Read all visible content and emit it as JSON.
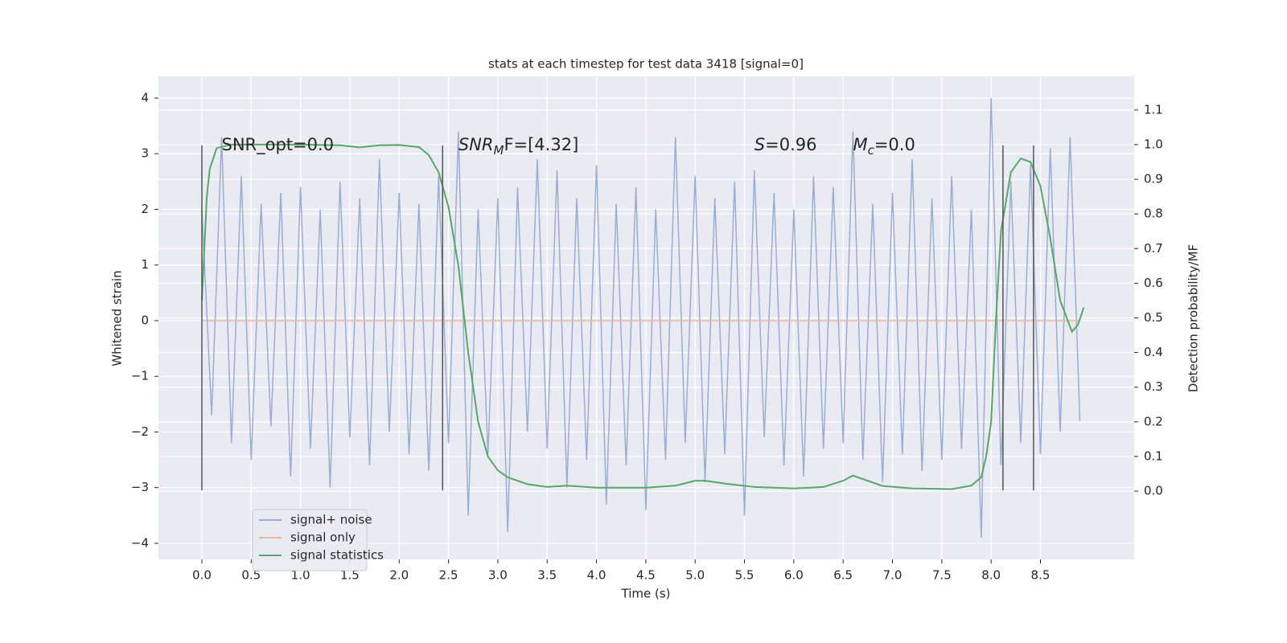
{
  "chart_data": {
    "type": "line",
    "title": "stats at each timestep for test data 3418 [signal=0]",
    "xlabel": "Time (s)",
    "ylabel": "Whitened strain",
    "y2label": "Detection probability/MF",
    "xlim": [
      -0.44,
      9.45
    ],
    "ylim": [
      -4.29,
      4.39
    ],
    "y2lim": [
      -0.197,
      1.197
    ],
    "xticks": [
      {
        "value": 0,
        "label": "0.0"
      },
      0.5,
      {
        "value": 1,
        "label": "1.0"
      },
      1.5,
      {
        "value": 2,
        "label": "2.0"
      },
      2.5,
      {
        "value": 3,
        "label": "3.0"
      },
      3.5,
      {
        "value": 4,
        "label": "4.0"
      },
      4.5,
      {
        "value": 5,
        "label": "5.0"
      },
      5.5,
      {
        "value": 6,
        "label": "6.0"
      },
      6.5,
      {
        "value": 7,
        "label": "7.0"
      },
      7.5,
      {
        "value": 8,
        "label": "8.0"
      },
      8.5
    ],
    "yticks": [
      {
        "value": -4,
        "label": "−4"
      },
      {
        "value": -3,
        "label": "−3"
      },
      {
        "value": -2,
        "label": "−2"
      },
      {
        "value": -1,
        "label": "−1"
      },
      0,
      1,
      2,
      3,
      4
    ],
    "y2ticks": [
      {
        "value": 0,
        "label": "0.0"
      },
      0.1,
      0.2,
      0.3,
      0.4,
      0.5,
      0.6,
      0.7,
      0.8,
      0.9,
      {
        "value": 1,
        "label": "1.0"
      },
      1.1
    ],
    "grid": true,
    "legend": "lower left",
    "background": "#eaeaf2",
    "vlines": [
      0.0,
      2.44,
      8.12,
      8.43
    ],
    "vline_ymin": -3.05,
    "vline_ymax": 3.15,
    "vline_color": "#555555",
    "annotations": [
      {
        "base": "SNR_opt=0.0",
        "x": 0.2,
        "y": 3.15
      },
      {
        "base": "SNR",
        "sub": "M",
        "rest": "F=[4.32]",
        "x": 2.6,
        "y": 3.15
      },
      {
        "base": "S",
        "rest": "=0.96",
        "x": 5.6,
        "y": 3.15
      },
      {
        "base": "M",
        "sub": "c",
        "rest": "=0.0",
        "x": 6.6,
        "y": 3.15
      }
    ],
    "series": [
      {
        "name": "signal+ noise",
        "color": "#9aaed3",
        "x": [
          0.0,
          0.1,
          0.2,
          0.3,
          0.4,
          0.5,
          0.6,
          0.7,
          0.8,
          0.9,
          1.0,
          1.1,
          1.2,
          1.3,
          1.4,
          1.5,
          1.6,
          1.7,
          1.8,
          1.9,
          2.0,
          2.1,
          2.2,
          2.3,
          2.4,
          2.5,
          2.6,
          2.7,
          2.8,
          2.9,
          3.0,
          3.1,
          3.2,
          3.3,
          3.4,
          3.5,
          3.6,
          3.7,
          3.8,
          3.9,
          4.0,
          4.1,
          4.2,
          4.3,
          4.4,
          4.5,
          4.6,
          4.7,
          4.8,
          4.9,
          5.0,
          5.1,
          5.2,
          5.3,
          5.4,
          5.5,
          5.6,
          5.7,
          5.8,
          5.9,
          6.0,
          6.1,
          6.2,
          6.3,
          6.4,
          6.5,
          6.6,
          6.7,
          6.8,
          6.9,
          7.0,
          7.1,
          7.2,
          7.3,
          7.4,
          7.5,
          7.6,
          7.7,
          7.8,
          7.9,
          8.0,
          8.1,
          8.2,
          8.3,
          8.4,
          8.5,
          8.6,
          8.7,
          8.8,
          8.9
        ],
        "values": [
          2.0,
          -1.7,
          3.3,
          -2.2,
          2.6,
          -2.5,
          2.1,
          -1.9,
          2.3,
          -2.8,
          2.4,
          -2.3,
          2.0,
          -3.0,
          2.5,
          -2.1,
          2.2,
          -2.6,
          2.9,
          -2.0,
          2.3,
          -2.4,
          2.1,
          -2.7,
          2.6,
          -2.2,
          3.4,
          -3.5,
          2.0,
          -2.4,
          2.2,
          -3.8,
          2.4,
          -2.0,
          2.9,
          -2.3,
          2.7,
          -3.0,
          2.2,
          -2.5,
          2.8,
          -3.3,
          2.1,
          -2.6,
          2.4,
          -3.4,
          2.0,
          -2.5,
          3.3,
          -2.2,
          2.6,
          -2.9,
          2.2,
          -2.4,
          2.5,
          -3.5,
          2.7,
          -2.1,
          2.3,
          -2.6,
          2.0,
          -2.8,
          2.6,
          -2.3,
          2.4,
          -2.2,
          3.4,
          -2.5,
          2.1,
          -2.9,
          2.3,
          -2.4,
          2.9,
          -2.7,
          2.2,
          -2.5,
          2.6,
          -2.3,
          2.0,
          -3.9,
          4.0,
          -2.6,
          2.5,
          -2.2,
          2.8,
          -2.4,
          3.1,
          -2.0,
          3.3,
          -1.8
        ]
      },
      {
        "name": "signal only",
        "color": "#e8b8a0",
        "x": [
          0.0,
          8.9
        ],
        "values": [
          0,
          0
        ]
      },
      {
        "name": "signal statistics",
        "color": "#55a868",
        "axis": "y2",
        "x": [
          0.0,
          0.05,
          0.08,
          0.15,
          0.3,
          0.5,
          1.0,
          1.4,
          1.6,
          1.8,
          2.0,
          2.2,
          2.3,
          2.4,
          2.5,
          2.6,
          2.7,
          2.8,
          2.9,
          3.0,
          3.1,
          3.3,
          3.5,
          3.7,
          4.0,
          4.5,
          4.8,
          5.0,
          5.1,
          5.3,
          5.6,
          6.0,
          6.3,
          6.5,
          6.6,
          6.7,
          6.9,
          7.2,
          7.6,
          7.8,
          7.9,
          7.95,
          8.0,
          8.05,
          8.1,
          8.2,
          8.3,
          8.4,
          8.5,
          8.6,
          8.7,
          8.78,
          8.82,
          8.88,
          8.94
        ],
        "values": [
          0.55,
          0.85,
          0.93,
          0.99,
          1.0,
          1.0,
          1.0,
          0.998,
          0.992,
          0.998,
          0.999,
          0.993,
          0.97,
          0.92,
          0.82,
          0.65,
          0.4,
          0.2,
          0.1,
          0.06,
          0.04,
          0.02,
          0.012,
          0.016,
          0.01,
          0.01,
          0.016,
          0.03,
          0.03,
          0.022,
          0.012,
          0.008,
          0.012,
          0.03,
          0.045,
          0.035,
          0.015,
          0.008,
          0.006,
          0.016,
          0.04,
          0.1,
          0.2,
          0.5,
          0.75,
          0.92,
          0.96,
          0.95,
          0.88,
          0.73,
          0.55,
          0.49,
          0.46,
          0.48,
          0.53
        ]
      }
    ]
  }
}
